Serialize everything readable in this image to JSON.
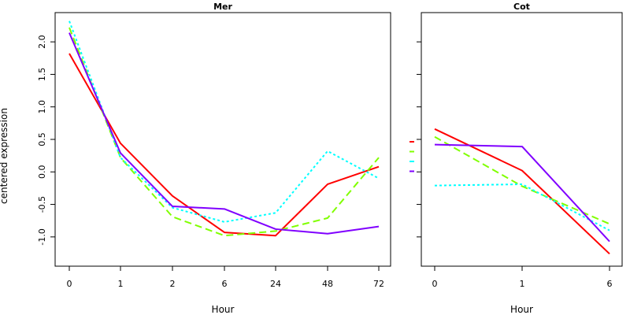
{
  "figure": {
    "ylabel": "centered expression"
  },
  "chart_data": [
    {
      "type": "line",
      "title": "Mer",
      "xlabel": "Hour",
      "ylabel": "centered expression",
      "categories": [
        "0",
        "1",
        "2",
        "6",
        "24",
        "48",
        "72"
      ],
      "ylim": [
        -1.45,
        2.45
      ],
      "yticks": [
        -1.0,
        -0.5,
        0.0,
        0.5,
        1.0,
        1.5,
        2.0
      ],
      "ytick_labels": [
        "-1.0",
        "-0.5",
        "0.0",
        "0.5",
        "1.0",
        "1.5",
        "2.0"
      ],
      "grid": false,
      "series": [
        {
          "color": "#ff0000",
          "dash": "solid",
          "values": [
            1.82,
            0.44,
            -0.37,
            -0.93,
            -0.98,
            -0.19,
            0.08
          ]
        },
        {
          "color": "#80ff00",
          "dash": "dashed",
          "values": [
            2.22,
            0.22,
            -0.69,
            -0.98,
            -0.91,
            -0.71,
            0.22
          ]
        },
        {
          "color": "#00ffff",
          "dash": "dotted",
          "values": [
            2.32,
            0.22,
            -0.55,
            -0.77,
            -0.63,
            0.32,
            -0.1
          ]
        },
        {
          "color": "#8000ff",
          "dash": "solid",
          "values": [
            2.14,
            0.29,
            -0.53,
            -0.57,
            -0.88,
            -0.95,
            -0.84
          ]
        }
      ]
    },
    {
      "type": "line",
      "title": "Cot",
      "xlabel": "Hour",
      "categories": [
        "0",
        "1",
        "6"
      ],
      "ylim": [
        -1.45,
        2.45
      ],
      "grid": false,
      "series": [
        {
          "color": "#ff0000",
          "dash": "solid",
          "values": [
            0.66,
            0.02,
            -1.26
          ]
        },
        {
          "color": "#80ff00",
          "dash": "dashed",
          "values": [
            0.54,
            -0.22,
            -0.8
          ]
        },
        {
          "color": "#00ffff",
          "dash": "dotted",
          "values": [
            -0.21,
            -0.19,
            -0.9
          ]
        },
        {
          "color": "#8000ff",
          "dash": "solid",
          "values": [
            0.42,
            0.39,
            -1.07
          ]
        }
      ]
    }
  ]
}
